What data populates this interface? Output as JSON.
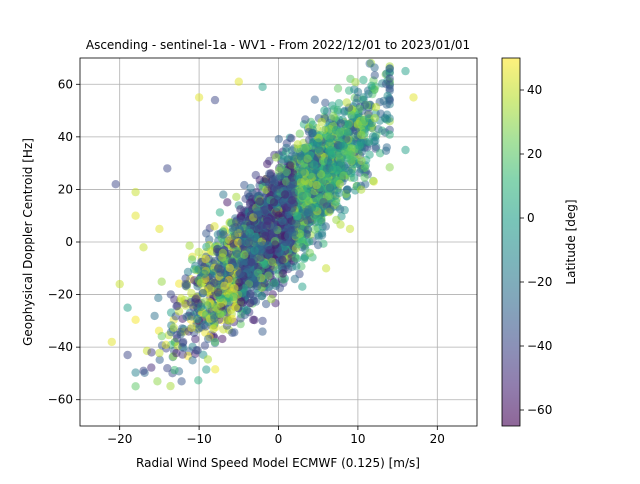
{
  "chart_data": {
    "type": "scatter",
    "title": "Ascending - sentinel-1a - WV1 - From 2022/12/01 to 2023/01/01",
    "xlabel": "Radial Wind Speed Model ECMWF (0.125) [m/s]",
    "ylabel": "Geophysical Doppler Centroid [Hz]",
    "xlim": [
      -25,
      25
    ],
    "ylim": [
      -70,
      70
    ],
    "xticks": [
      -20,
      -10,
      0,
      10,
      20
    ],
    "yticks": [
      -60,
      -40,
      -20,
      0,
      20,
      40,
      60
    ],
    "xtick_labels": [
      "−20",
      "−10",
      "0",
      "10",
      "20"
    ],
    "ytick_labels": [
      "−60",
      "−40",
      "−20",
      "0",
      "20",
      "40",
      "60"
    ],
    "grid": true,
    "colormap": "viridis",
    "point_alpha": 0.5,
    "colorbar": {
      "label": "Latitude [deg]",
      "range": [
        -65,
        50
      ],
      "ticks": [
        -60,
        -40,
        -20,
        0,
        20,
        40
      ],
      "tick_labels": [
        "−60",
        "−40",
        "−20",
        "0",
        "20",
        "40"
      ]
    },
    "trend": {
      "slope": 3.2,
      "intercept": 8
    },
    "points": [
      {
        "x": -20.5,
        "y": 22,
        "lat": -40
      },
      {
        "x": -21,
        "y": -38,
        "lat": 45
      },
      {
        "x": -19,
        "y": -43,
        "lat": -40
      },
      {
        "x": -17,
        "y": -49,
        "lat": -40
      },
      {
        "x": -14,
        "y": -48,
        "lat": -40
      },
      {
        "x": -16,
        "y": -42,
        "lat": -45
      },
      {
        "x": -20,
        "y": -16,
        "lat": 40
      },
      {
        "x": -18,
        "y": 10,
        "lat": 45
      },
      {
        "x": -18,
        "y": 19,
        "lat": 40
      },
      {
        "x": -14,
        "y": 28,
        "lat": -40
      },
      {
        "x": -10,
        "y": 55,
        "lat": 45
      },
      {
        "x": -8,
        "y": 54,
        "lat": -40
      },
      {
        "x": -5,
        "y": 61,
        "lat": 45
      },
      {
        "x": -2,
        "y": 59,
        "lat": 0
      },
      {
        "x": 16,
        "y": 65,
        "lat": 0
      },
      {
        "x": 17,
        "y": 55,
        "lat": 45
      },
      {
        "x": 16,
        "y": 35,
        "lat": 0
      },
      {
        "x": 12,
        "y": 23,
        "lat": 45
      },
      {
        "x": 6,
        "y": -10,
        "lat": 40
      },
      {
        "x": 3,
        "y": -17,
        "lat": 0
      },
      {
        "x": -2,
        "y": -30,
        "lat": -40
      },
      {
        "x": -8,
        "y": -38,
        "lat": 20
      },
      {
        "x": -12,
        "y": -38,
        "lat": -40
      },
      {
        "x": -17,
        "y": -2,
        "lat": 40
      },
      {
        "x": -15,
        "y": 5,
        "lat": 45
      },
      {
        "x": -19,
        "y": -25,
        "lat": 0
      },
      {
        "x": 9,
        "y": 5,
        "lat": 40
      },
      {
        "x": -4,
        "y": -26,
        "lat": 0
      }
    ]
  }
}
